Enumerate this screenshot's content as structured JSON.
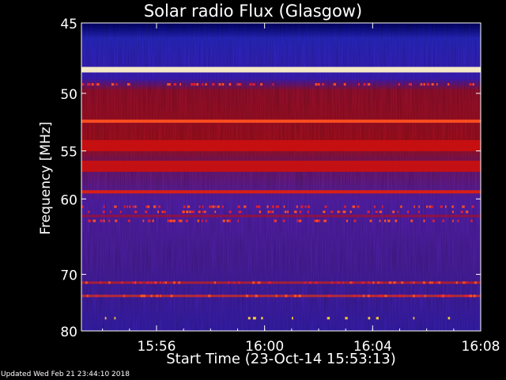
{
  "chart_data": {
    "type": "heatmap",
    "title": "Solar radio Flux (Glasgow)",
    "xlabel": "Start Time (23-Oct-14 15:53:13)",
    "ylabel": "Frequency [MHz]",
    "x_tick_labels": [
      "15:56",
      "16:00",
      "16:04",
      "16:08"
    ],
    "x_ticks_minutes_after_1553_13": [
      2.78,
      6.78,
      10.78,
      14.78
    ],
    "x_range_minutes": [
      0,
      14.78
    ],
    "y_tick_labels": [
      "45",
      "50",
      "55",
      "60",
      "70",
      "80"
    ],
    "y_ticks_mhz": [
      45,
      50,
      55,
      60,
      70,
      80
    ],
    "y_range_mhz": [
      45,
      80
    ],
    "y_scale": "reciprocal (frequency increases downward, compressed at high values)",
    "colormap": [
      "#1a0a5e",
      "#3a1aa0",
      "#4a2ad8",
      "#7a1a9a",
      "#a01030",
      "#c81010",
      "#ff4020",
      "#ffd030",
      "#fff6c8"
    ],
    "emission_bands": [
      {
        "freq_mhz": 48.2,
        "intensity": "very high",
        "color": "#fff6c8"
      },
      {
        "freq_mhz": 52.3,
        "intensity": "high",
        "color": "#ff5020"
      },
      {
        "freq_mhz": 54.5,
        "intensity": "medium-high",
        "color": "#c81010"
      },
      {
        "freq_mhz": 56.5,
        "intensity": "medium-high",
        "color": "#c81010"
      },
      {
        "freq_mhz": 59.2,
        "intensity": "high",
        "color": "#e02010"
      },
      {
        "freq_mhz": 62.0,
        "intensity": "medium",
        "color": "#a01030"
      },
      {
        "freq_mhz": 71.3,
        "intensity": "medium",
        "color": "#c02020"
      },
      {
        "freq_mhz": 73.5,
        "intensity": "medium",
        "color": "#d03020"
      }
    ],
    "grid": true
  },
  "footer": {
    "updated": "Updated Wed Feb 21 23:44:10 2018"
  }
}
